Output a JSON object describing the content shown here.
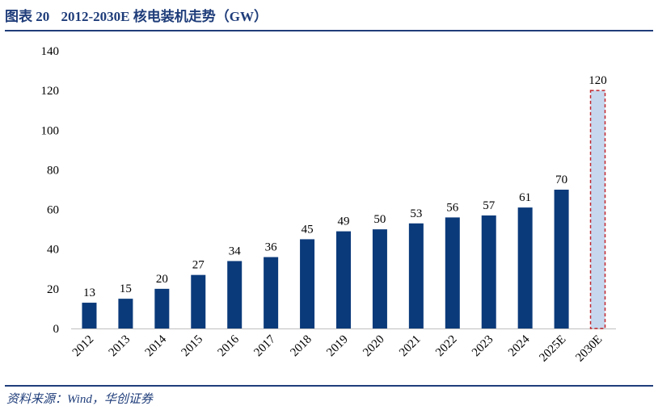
{
  "header": {
    "figure_label": "图表 20",
    "title": "2012-2030E 核电装机走势（GW）"
  },
  "footer": {
    "source": "资料来源：Wind，华创证券"
  },
  "colors": {
    "bar": "#0b3a7a",
    "forecast_fill": "#c7d7ee",
    "forecast_border": "#c0262d",
    "title": "#1f3d7a"
  },
  "chart_data": {
    "type": "bar",
    "title": "2012-2030E 核电装机走势（GW）",
    "xlabel": "",
    "ylabel": "",
    "ylim": [
      0,
      140
    ],
    "yticks": [
      0,
      20,
      40,
      60,
      80,
      100,
      120,
      140
    ],
    "grid": false,
    "legend": "none",
    "categories": [
      "2012",
      "2013",
      "2014",
      "2015",
      "2016",
      "2017",
      "2018",
      "2019",
      "2020",
      "2021",
      "2022",
      "2023",
      "2024",
      "2025E",
      "2030E"
    ],
    "values": [
      13,
      15,
      20,
      27,
      34,
      36,
      45,
      49,
      50,
      53,
      56,
      57,
      61,
      70,
      120
    ],
    "forecast_style_category": "2030E"
  }
}
